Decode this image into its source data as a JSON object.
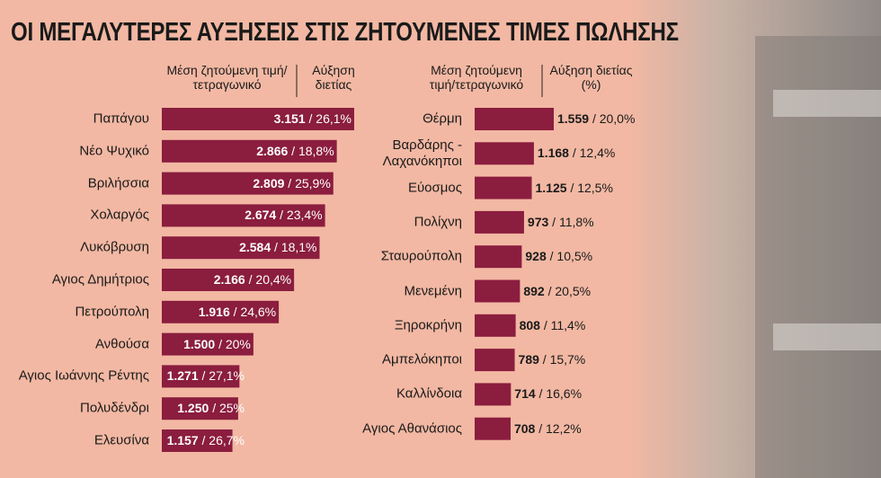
{
  "title": "ΟΙ ΜΕΓΑΛΥΤΕΡΕΣ ΑΥΞΗΣΕΙΣ ΣΤΙΣ ΖΗΤΟΥΜΕΝΕΣ ΤΙΜΕΣ ΠΩΛΗΣΗΣ",
  "chart_data": [
    {
      "type": "bar",
      "orientation": "horizontal",
      "separator": "/",
      "value_label_position": "inside",
      "categories": [
        "Παπάγου",
        "Νέο Ψυχικό",
        "Βριλήσσια",
        "Χολαργός",
        "Λυκόβρυση",
        "Αγιος Δημήτριος",
        "Πετρούπολη",
        "Ανθούσα",
        "Αγιος Ιωάννης Ρέντης",
        "Πολυδένδρι",
        "Ελευσίνα"
      ],
      "series": [
        {
          "name": "Μέση ζητούμενη τιμή/τετραγωνικό",
          "color": "#8b1d3f",
          "values": [
            3151,
            2866,
            2809,
            2674,
            2584,
            2166,
            1916,
            1500,
            1271,
            1250,
            1157
          ],
          "value_labels": [
            "3.151",
            "2.866",
            "2.809",
            "2.674",
            "2.584",
            "2.166",
            "1.916",
            "1.500",
            "1.271",
            "1.250",
            "1.157"
          ]
        },
        {
          "name": "Αύξηση διετίας",
          "values": [
            26.1,
            18.8,
            25.9,
            23.4,
            18.1,
            20.4,
            24.6,
            20,
            27.1,
            25,
            26.7
          ],
          "value_labels": [
            "26,1%",
            "18,8%",
            "25,9%",
            "23,4%",
            "18,1%",
            "20,4%",
            "24,6%",
            "20%",
            "27,1%",
            "25%",
            "26,7%"
          ]
        }
      ]
    },
    {
      "type": "bar",
      "orientation": "horizontal",
      "separator": "/",
      "value_label_position": "outside",
      "categories": [
        "Θέρμη",
        "Βαρδάρης - Λαχανόκηποι",
        "Εύοσμος",
        "Πολίχνη",
        "Σταυρούπολη",
        "Μενεμένη",
        "Ξηροκρήνη",
        "Αμπελόκηποι",
        "Καλλίνδοια",
        "Αγιος Αθανάσιος"
      ],
      "series": [
        {
          "name": "Μέση ζητούμενη τιμή/τετραγωνικό",
          "color": "#8b1d3f",
          "values": [
            1559,
            1168,
            1125,
            973,
            928,
            892,
            808,
            789,
            714,
            708
          ],
          "value_labels": [
            "1.559",
            "1.168",
            "1.125",
            "973",
            "928",
            "892",
            "808",
            "789",
            "714",
            "708"
          ]
        },
        {
          "name": "Αύξηση διετίας (%)",
          "values": [
            20.0,
            12.4,
            12.5,
            11.8,
            10.5,
            20.5,
            11.4,
            15.7,
            16.6,
            12.2
          ],
          "value_labels": [
            "20,0%",
            "12,4%",
            "12,5%",
            "11,8%",
            "10,5%",
            "20,5%",
            "11,4%",
            "15,7%",
            "16,6%",
            "12,2%"
          ]
        }
      ]
    }
  ]
}
